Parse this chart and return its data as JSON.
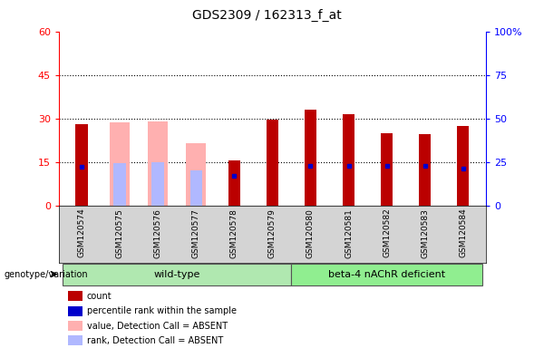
{
  "title": "GDS2309 / 162313_f_at",
  "samples": [
    "GSM120574",
    "GSM120575",
    "GSM120576",
    "GSM120577",
    "GSM120578",
    "GSM120579",
    "GSM120580",
    "GSM120581",
    "GSM120582",
    "GSM120583",
    "GSM120584"
  ],
  "count_values": [
    28.0,
    0.0,
    0.0,
    0.0,
    15.5,
    29.5,
    33.0,
    31.5,
    25.0,
    24.5,
    27.5
  ],
  "percentile_rank": [
    22.0,
    0.0,
    0.0,
    0.0,
    17.0,
    0.0,
    22.5,
    22.5,
    22.5,
    22.5,
    21.0
  ],
  "absent_value": [
    0.0,
    28.5,
    29.0,
    21.5,
    0.0,
    0.0,
    0.0,
    0.0,
    0.0,
    0.0,
    0.0
  ],
  "absent_rank": [
    0.0,
    24.0,
    25.0,
    20.0,
    0.0,
    0.0,
    0.0,
    0.0,
    0.0,
    0.0,
    0.0
  ],
  "ylim_left": [
    0,
    60
  ],
  "ylim_right": [
    0,
    100
  ],
  "yticks_left": [
    0,
    15,
    30,
    45,
    60
  ],
  "yticks_right": [
    0,
    25,
    50,
    75,
    100
  ],
  "ytick_labels_right": [
    "0",
    "25",
    "50",
    "75",
    "100%"
  ],
  "wild_type_indices": [
    0,
    1,
    2,
    3,
    4,
    5
  ],
  "deficient_indices": [
    6,
    7,
    8,
    9,
    10
  ],
  "wild_type_label": "wild-type",
  "deficient_label": "beta-4 nAChR deficient",
  "genotype_label": "genotype/variation",
  "color_count": "#bb0000",
  "color_percentile": "#0000cc",
  "color_absent_value": "#ffb0b0",
  "color_absent_rank": "#b0b8ff",
  "grid_lines": [
    15,
    30,
    45
  ],
  "legend_labels": [
    "count",
    "percentile rank within the sample",
    "value, Detection Call = ABSENT",
    "rank, Detection Call = ABSENT"
  ],
  "legend_colors": [
    "#bb0000",
    "#0000cc",
    "#ffb0b0",
    "#b0b8ff"
  ]
}
